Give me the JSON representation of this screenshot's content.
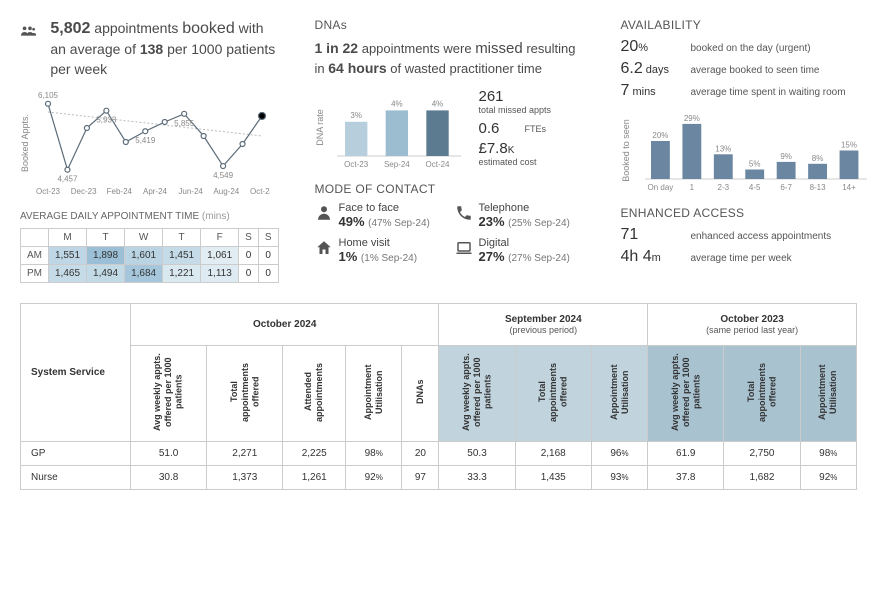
{
  "colors": {
    "text": "#4a4a4a",
    "muted": "#888",
    "line": "#5b6b78",
    "dashed": "#99a",
    "heat_max": "#8fb7cf",
    "dna_bars": [
      "#b7cfdd",
      "#9cbcd0",
      "#5c7a90"
    ],
    "avail_bar": "#6a86a0",
    "grp_sep": "#c1d3dd",
    "grp_sep2": "#a9c2d0",
    "border": "#ccc"
  },
  "appts": {
    "count": "5,802",
    "word": "booked",
    "rate": "138",
    "text1": "appointments",
    "text2": "with an average of",
    "text3": "per 1000 patients per week"
  },
  "line_chart": {
    "type": "line",
    "ylabel": "Booked Appts.",
    "x_labels": [
      "Oct-23",
      "Dec-23",
      "Feb-24",
      "Apr-24",
      "Jun-24",
      "Aug-24",
      "Oct-24"
    ],
    "points": [
      6105,
      4457,
      5500,
      5933,
      5150,
      5419,
      5650,
      5855,
      5300,
      4549,
      5100,
      5802
    ],
    "callouts": {
      "0": "6,105",
      "1": "4,457",
      "3": "5,933",
      "5": "5,419",
      "7": "5,855",
      "9": "4,549"
    },
    "ymin": 4200,
    "ymax": 6300,
    "dot_color": "#5b6b78",
    "line_color": "#5b6b78",
    "trend_color": "#bbb"
  },
  "daily_table": {
    "title": "AVERAGE DAILY APPOINTMENT TIME",
    "unit": "(mins)",
    "cols": [
      "M",
      "T",
      "W",
      "T",
      "F",
      "S",
      "S"
    ],
    "rows": [
      {
        "label": "AM",
        "vals": [
          "1,551",
          "1,898",
          "1,601",
          "1,451",
          "1,061",
          "0",
          "0"
        ],
        "heat": [
          0.55,
          1.0,
          0.6,
          0.45,
          0.1,
          0,
          0
        ]
      },
      {
        "label": "PM",
        "vals": [
          "1,465",
          "1,494",
          "1,684",
          "1,221",
          "1,113",
          "0",
          "0"
        ],
        "heat": [
          0.45,
          0.5,
          0.85,
          0.2,
          0.15,
          0,
          0
        ]
      }
    ]
  },
  "dnas": {
    "title": "DNAs",
    "ratio": "1 in 22",
    "word": "missed",
    "hours": "64 hours",
    "t1": "appointments were",
    "t2": "resulting in",
    "t3": "of wasted practitioner time",
    "chart": {
      "type": "bar",
      "ylabel": "DNA rate",
      "labels": [
        "Oct-23",
        "Sep-24",
        "Oct-24"
      ],
      "values": [
        "3%",
        "4%",
        "4%"
      ],
      "heights": [
        3,
        4,
        4
      ]
    },
    "stats": [
      {
        "v": "261",
        "l": "total missed appts"
      },
      {
        "v": "0.6",
        "l": "FTEs"
      },
      {
        "v": "£7.8",
        "suffix": "K",
        "l": "estimated cost"
      }
    ]
  },
  "moc": {
    "title": "MODE OF CONTACT",
    "items": [
      {
        "icon": "person",
        "label": "Face to face",
        "pct": "49%",
        "prev": "(47% Sep-24)"
      },
      {
        "icon": "phone",
        "label": "Telephone",
        "pct": "23%",
        "prev": "(25% Sep-24)"
      },
      {
        "icon": "home",
        "label": "Home visit",
        "pct": "1%",
        "prev": "(1% Sep-24)"
      },
      {
        "icon": "laptop",
        "label": "Digital",
        "pct": "27%",
        "prev": "(27% Sep-24)"
      }
    ]
  },
  "availability": {
    "title": "AVAILABILITY",
    "rows": [
      {
        "v": "20",
        "suffix": "%",
        "l": "booked on the day (urgent)"
      },
      {
        "v": "6.2",
        "suffix": " days",
        "l": "average booked to seen time"
      },
      {
        "v": "7",
        "suffix": " mins",
        "l": "average time spent in waiting room"
      }
    ],
    "chart": {
      "type": "bar",
      "ylabel": "Booked to seen",
      "labels": [
        "On day",
        "1",
        "2-3",
        "4-5",
        "6-7",
        "8-13",
        "14+"
      ],
      "values": [
        "20%",
        "29%",
        "13%",
        "5%",
        "9%",
        "8%",
        "15%"
      ],
      "heights": [
        20,
        29,
        13,
        5,
        9,
        8,
        15
      ]
    }
  },
  "enhanced": {
    "title": "ENHANCED ACCESS",
    "rows": [
      {
        "v": "71",
        "suffix": "",
        "l": "enhanced access appointments"
      },
      {
        "v": "4h 4",
        "suffix": "m",
        "l": "average time per week"
      }
    ]
  },
  "main": {
    "col1": "System Service",
    "periods": [
      {
        "title": "October 2024",
        "sub": "",
        "cols": [
          "Avg weekly appts. offered per 1000 patients",
          "Total appointments offered",
          "Attended appointments",
          "Appointment Utilisation",
          "DNAs"
        ]
      },
      {
        "title": "September 2024",
        "sub": "(previous period)",
        "cols": [
          "Avg weekly appts. offered per 1000 patients",
          "Total appointments offered",
          "Appointment Utilisation"
        ]
      },
      {
        "title": "October 2023",
        "sub": "(same period last year)",
        "cols": [
          "Avg weekly appts. offered per 1000 patients",
          "Total appointments offered",
          "Appointment Utilisation"
        ]
      }
    ],
    "rows": [
      {
        "name": "GP",
        "cells": [
          "51.0",
          "2,271",
          "2,225",
          "98%",
          "20",
          "50.3",
          "2,168",
          "96%",
          "61.9",
          "2,750",
          "98%"
        ]
      },
      {
        "name": "Nurse",
        "cells": [
          "30.8",
          "1,373",
          "1,261",
          "92%",
          "97",
          "33.3",
          "1,435",
          "93%",
          "37.8",
          "1,682",
          "92%"
        ]
      }
    ]
  }
}
